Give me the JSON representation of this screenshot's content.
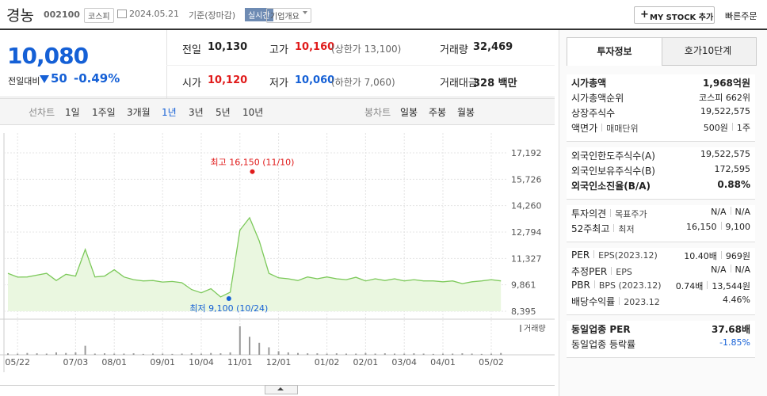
{
  "header": {
    "name": "경농",
    "code": "002100",
    "market": "코스피",
    "date": "2024.05.21",
    "basis": "기준(장마감)",
    "realtime": "실시간",
    "company_info": "기업개요",
    "my_stock": "MY STOCK 추가",
    "quick_order": "빠른주문"
  },
  "price": {
    "current": "10,080",
    "change_label": "전일대비",
    "change": "50",
    "rate": "-0.49%",
    "color": "#1560d6"
  },
  "summary": {
    "rows": [
      [
        {
          "label": "전일",
          "value": "10,130"
        },
        {
          "label": "고가",
          "value": "10,160",
          "note": "(상한가 13,100)",
          "color": "#e01b1b"
        },
        {
          "label": "거래량",
          "value": "32,469"
        }
      ],
      [
        {
          "label": "시가",
          "value": "10,120",
          "color": "#e01b1b"
        },
        {
          "label": "저가",
          "value": "10,060",
          "note": "(하한가 7,060)",
          "color": "#1560d6"
        },
        {
          "label": "거래대금",
          "value": "328 백만"
        }
      ]
    ]
  },
  "chart_tabs": {
    "line_label": "선차트",
    "line": [
      "1일",
      "1주일",
      "3개월",
      "1년",
      "3년",
      "5년",
      "10년"
    ],
    "selected": 3,
    "candle_label": "봉차트",
    "candle": [
      "일봉",
      "주봉",
      "월봉"
    ]
  },
  "chart_data": {
    "type": "line",
    "color": "#7cc95a",
    "categories": [
      null,
      "05/22",
      null,
      null,
      null,
      null,
      null,
      "07/03",
      null,
      null,
      null,
      "08/01",
      null,
      null,
      null,
      null,
      "09/01",
      null,
      null,
      null,
      "10/04",
      null,
      null,
      null,
      "11/01",
      null,
      null,
      null,
      "12/01",
      null,
      null,
      null,
      null,
      "01/02",
      null,
      null,
      null,
      "02/01",
      null,
      null,
      null,
      "03/04",
      null,
      null,
      null,
      "04/01",
      null,
      null,
      null,
      null,
      "05/02",
      null
    ],
    "values": [
      10500,
      10290,
      10300,
      10400,
      10500,
      10100,
      10450,
      10350,
      11830,
      10300,
      10350,
      10700,
      10300,
      10150,
      10080,
      10100,
      10020,
      10050,
      9980,
      9600,
      9420,
      9650,
      9190,
      9450,
      12900,
      13590,
      12300,
      10500,
      10250,
      10200,
      10100,
      10300,
      10200,
      10300,
      10200,
      10150,
      10280,
      10080,
      10200,
      10100,
      10200,
      10080,
      10150,
      10080,
      10080,
      10030,
      10080,
      9930,
      10030,
      10080,
      10150,
      10080
    ],
    "ylim": [
      8395,
      17192
    ],
    "yticks": [
      {
        "value": 17192,
        "label": "17,192"
      },
      {
        "value": 15726,
        "label": "15,726"
      },
      {
        "value": 14260,
        "label": "14,260"
      },
      {
        "value": 12794,
        "label": "12,794"
      },
      {
        "value": 11327,
        "label": "11,327"
      },
      {
        "value": 9861,
        "label": "9,861"
      },
      {
        "value": 8395,
        "label": "8,395"
      }
    ],
    "grid": true,
    "annotations": [
      {
        "label": "최고 16,150 (11/10)",
        "value": 16150,
        "date": "11/10",
        "color": "#e01b1b"
      },
      {
        "label": "최저 9,100 (10/24)",
        "value": 9100,
        "date": "10/24",
        "color": "#1560d6"
      }
    ],
    "volume": {
      "type": "bar",
      "name": "거래량",
      "color": "#9a9a9a",
      "ylim": [
        0,
        100
      ],
      "values": [
        5,
        4,
        6,
        5,
        4,
        8,
        6,
        8,
        30,
        4,
        5,
        4,
        4,
        5,
        3,
        4,
        4,
        3,
        4,
        5,
        4,
        6,
        5,
        8,
        95,
        60,
        40,
        25,
        12,
        8,
        6,
        5,
        5,
        4,
        5,
        4,
        4,
        6,
        4,
        5,
        4,
        4,
        5,
        4,
        3,
        4,
        4,
        5,
        4,
        3,
        4,
        6
      ]
    }
  },
  "invest_info": {
    "tabs": [
      "투자정보",
      "호가10단계"
    ],
    "selected": 0,
    "groups": [
      [
        {
          "label": [
            "시가총액"
          ],
          "value": [
            "1,968억원"
          ],
          "bold": true
        },
        {
          "label": [
            "시가총액순위"
          ],
          "value": [
            "코스피 662위"
          ]
        },
        {
          "label": [
            "상장주식수"
          ],
          "value": [
            "19,522,575"
          ]
        },
        {
          "label": [
            "액면가",
            "매매단위"
          ],
          "value": [
            "500원",
            "1주"
          ]
        }
      ],
      [
        {
          "label": [
            "외국인한도주식수(A)"
          ],
          "value": [
            "19,522,575"
          ]
        },
        {
          "label": [
            "외국인보유주식수(B)"
          ],
          "value": [
            "172,595"
          ]
        },
        {
          "label": [
            "외국인소진율(B/A)"
          ],
          "value": [
            "0.88%"
          ],
          "bold": true
        }
      ],
      [
        {
          "label": [
            "투자의견",
            "목표주가"
          ],
          "value": [
            "N/A",
            "N/A"
          ]
        },
        {
          "label": [
            "52주최고",
            "최저"
          ],
          "value": [
            "16,150",
            "9,100"
          ]
        }
      ],
      [
        {
          "label": [
            "PER",
            "EPS(2023.12)"
          ],
          "value": [
            "10.40배",
            "969원"
          ]
        },
        {
          "label": [
            "추정PER",
            "EPS"
          ],
          "value": [
            "N/A",
            "N/A"
          ]
        },
        {
          "label": [
            "PBR",
            "BPS (2023.12)"
          ],
          "value": [
            "0.74배",
            "13,544원"
          ]
        },
        {
          "label": [
            "배당수익률",
            "2023.12"
          ],
          "value": [
            "4.46%"
          ]
        }
      ],
      [
        {
          "label": [
            "동일업종 PER"
          ],
          "value": [
            "37.68배"
          ],
          "bold": true
        },
        {
          "label": [
            "동일업종 등락률"
          ],
          "value": [
            "-1.85%"
          ],
          "color": "#1560d6"
        }
      ]
    ]
  }
}
